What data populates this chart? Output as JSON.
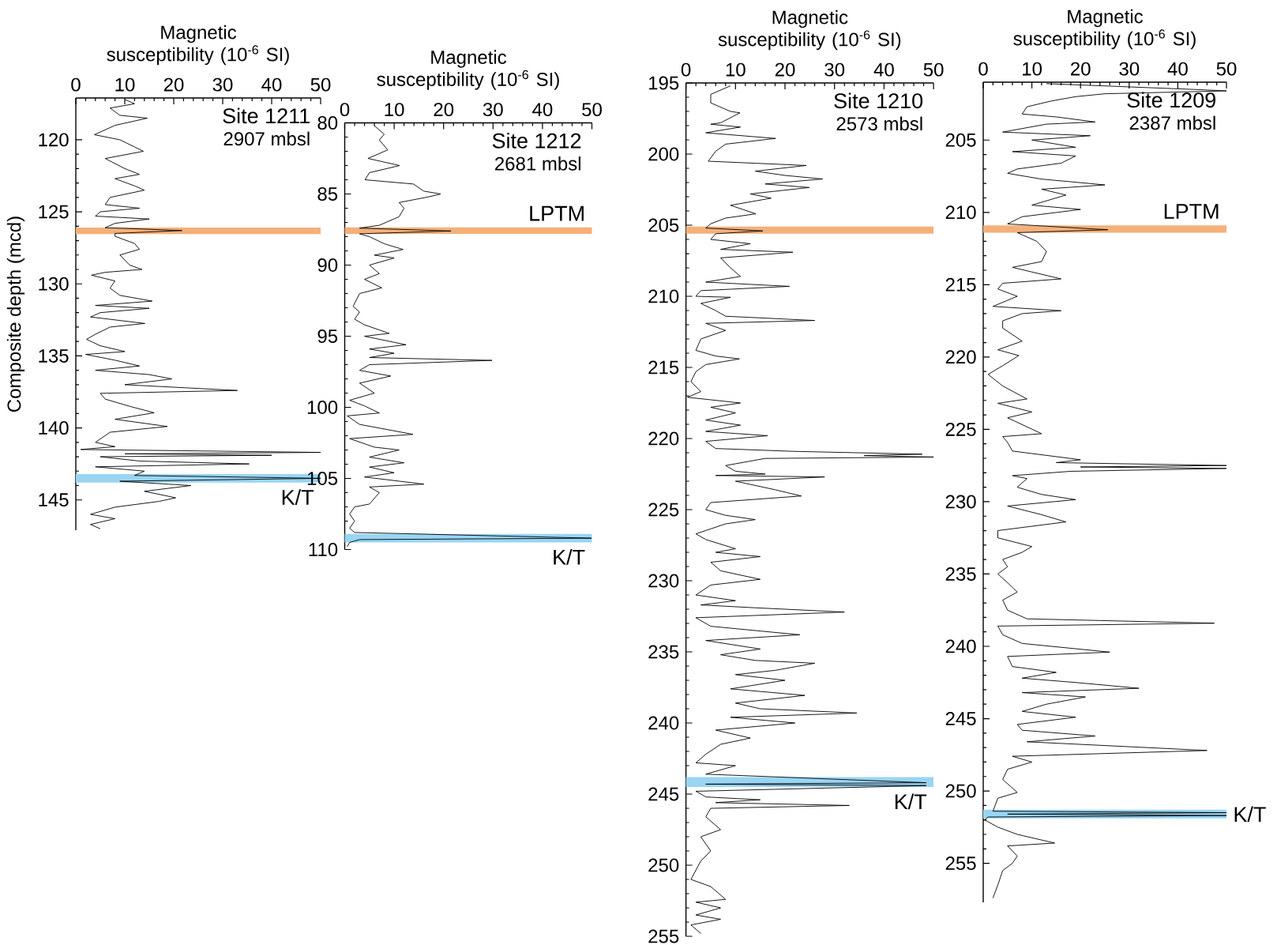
{
  "chart_data": [
    {
      "type": "line",
      "title": "Site 1211",
      "subtitle": "2907 mbsl",
      "xlabel": "Magnetic susceptibility (10$^{-6}$ SI)",
      "ylabel": "Composite depth (mcd)",
      "xlim": [
        0,
        50
      ],
      "xticks": [
        0,
        10,
        20,
        30,
        40,
        50
      ],
      "ylim": [
        147.1,
        117.1
      ],
      "yticks": [
        120,
        125,
        130,
        135,
        140,
        145
      ],
      "series": [
        {
          "color": "#000000",
          "x": [
            10,
            12,
            7,
            9,
            14.6,
            8,
            3.8,
            9,
            12,
            13.8,
            6,
            10,
            13,
            8,
            12,
            14,
            7,
            6,
            13,
            5,
            4,
            15,
            8,
            6,
            21.7,
            8,
            8,
            12,
            13,
            9,
            11,
            13.5,
            6,
            3.2,
            8,
            7,
            9,
            15.6,
            4,
            15,
            5,
            3,
            14.1,
            7,
            4,
            2.2,
            5,
            10,
            2,
            8,
            13,
            4,
            15,
            19.6,
            10,
            33,
            5,
            6,
            11,
            16,
            8,
            18.7,
            7,
            4,
            8,
            1,
            50,
            10,
            40,
            5,
            13,
            35.4,
            4,
            14,
            12,
            50,
            9,
            23.5,
            14,
            20.4,
            17,
            8,
            3,
            8,
            3,
            5
          ],
          "values": [
            117.2,
            117.5,
            117.8,
            118.3,
            118.5,
            119.0,
            119.65,
            120.0,
            120.5,
            120.8,
            121.3,
            122.0,
            122.4,
            122.7,
            123.2,
            123.5,
            124.0,
            124.5,
            124.75,
            125.0,
            125.3,
            125.5,
            125.8,
            126.1,
            126.3,
            126.5,
            126.7,
            127.2,
            127.6,
            128.0,
            128.7,
            129.0,
            129.2,
            129.4,
            129.8,
            130.3,
            130.8,
            131.2,
            131.5,
            131.7,
            132.0,
            132.3,
            132.75,
            133.0,
            133.5,
            133.85,
            134.3,
            134.7,
            134.9,
            135.3,
            135.7,
            136.0,
            136.3,
            136.6,
            137.0,
            137.4,
            137.6,
            138.0,
            138.5,
            138.95,
            139.4,
            139.9,
            140.3,
            141.0,
            141.3,
            141.5,
            141.7,
            141.8,
            141.9,
            142.0,
            142.3,
            142.5,
            142.7,
            143.0,
            143.3,
            143.5,
            143.7,
            144.0,
            144.4,
            144.85,
            145.1,
            145.5,
            146.0,
            146.3,
            146.7,
            147.0
          ]
        }
      ],
      "bands": [
        {
          "axis": "y",
          "from": 126.1,
          "to": 126.55,
          "color": "#f5b07a"
        },
        {
          "axis": "y",
          "from": 143.2,
          "to": 143.8,
          "label": "K/T",
          "color": "#99d5f3"
        }
      ]
    },
    {
      "type": "line",
      "title": "Site 1212",
      "subtitle": "2681 mbsl",
      "xlabel": "Magnetic susceptibility (10$^{-6}$ SI)",
      "xlim": [
        0,
        50
      ],
      "xticks": [
        0,
        10,
        20,
        30,
        40,
        50
      ],
      "ylim": [
        110,
        80
      ],
      "yticks": [
        80,
        85,
        90,
        95,
        100,
        105,
        110
      ],
      "series": [
        {
          "color": "#000000",
          "x": [
            6,
            8,
            7,
            8.7,
            4.7,
            11.1,
            5,
            4.1,
            13.9,
            16,
            19.4,
            17,
            11,
            12,
            11,
            7,
            3,
            21.5,
            3,
            5,
            8,
            11.8,
            6,
            10,
            5,
            7,
            4,
            7.5,
            3,
            1.7,
            3,
            2,
            4,
            9,
            4,
            12.4,
            5,
            10,
            5,
            29.8,
            5,
            3,
            9.3,
            3,
            6,
            1,
            4,
            7,
            0.5,
            3,
            13.8,
            1,
            6,
            11,
            5,
            12,
            5,
            10,
            4,
            16,
            5,
            7,
            5,
            2,
            1,
            2,
            1,
            2,
            49.9,
            3,
            1,
            0.5
          ],
          "values": [
            80.2,
            80.8,
            81.2,
            81.9,
            82.5,
            83.0,
            83.5,
            84.0,
            84.3,
            84.8,
            85.0,
            85.2,
            85.6,
            86.0,
            86.6,
            87.2,
            87.4,
            87.6,
            87.8,
            88.0,
            88.5,
            88.9,
            89.3,
            89.5,
            90.0,
            90.6,
            91.0,
            91.6,
            92.0,
            92.9,
            93.3,
            93.8,
            94.2,
            94.8,
            95.0,
            95.6,
            95.9,
            96.2,
            96.5,
            96.7,
            97.0,
            97.4,
            97.8,
            98.3,
            99.0,
            99.5,
            99.9,
            100.4,
            100.6,
            101.2,
            101.9,
            102.2,
            102.8,
            103.0,
            103.5,
            103.9,
            104.2,
            104.6,
            104.9,
            105.4,
            105.6,
            106.0,
            106.8,
            107.0,
            107.5,
            108.0,
            108.5,
            108.8,
            109.2,
            109.3,
            109.5,
            109.8
          ]
        }
      ],
      "bands": [
        {
          "axis": "y",
          "from": 87.35,
          "to": 87.8,
          "label": "LPTM",
          "color": "#f5b07a"
        },
        {
          "axis": "y",
          "from": 108.9,
          "to": 109.5,
          "label": "K/T",
          "color": "#99d5f3"
        }
      ]
    },
    {
      "type": "line",
      "title": "Site 1210",
      "subtitle": "2573 mbsl",
      "xlabel": "Magnetic susceptibility (10$^{-6}$ SI)",
      "xlim": [
        0,
        50
      ],
      "xticks": [
        0,
        10,
        20,
        30,
        40,
        50
      ],
      "ylim": [
        255,
        195
      ],
      "yticks": [
        195,
        200,
        205,
        210,
        215,
        220,
        225,
        230,
        235,
        240,
        245,
        250,
        255
      ],
      "series": [
        {
          "color": "#000000",
          "x": [
            9,
            5,
            5,
            9,
            10.9,
            7,
            5,
            11,
            4,
            18.1,
            8,
            6,
            4.5,
            24.3,
            14,
            20,
            27.6,
            16,
            24.9,
            13,
            17.2,
            9,
            14.1,
            8,
            5,
            4,
            15.5,
            6,
            5,
            13,
            7,
            21.6,
            7,
            9,
            11,
            4,
            20.9,
            3,
            2,
            9,
            3,
            6,
            8,
            26,
            4,
            8,
            3,
            2,
            6,
            10.8,
            4,
            2,
            1,
            3,
            0.3,
            11,
            5,
            10,
            4,
            11,
            4,
            16.5,
            4,
            6,
            21.7,
            47.7,
            36,
            50,
            16,
            8,
            10,
            16,
            6,
            28,
            10,
            18,
            23.3,
            5,
            4,
            8,
            14,
            8,
            2,
            4,
            10,
            6,
            15,
            5,
            7,
            15,
            5,
            2,
            10,
            3,
            14,
            32,
            2,
            5,
            23,
            4,
            15,
            7,
            14,
            26,
            18,
            10,
            20,
            9,
            24,
            10,
            15,
            34.5,
            9,
            22,
            6,
            13,
            7,
            4,
            2,
            10,
            4,
            48.5,
            4,
            48.5,
            2,
            4,
            15,
            6,
            33,
            5,
            4,
            7,
            3,
            5,
            3,
            1,
            5,
            8,
            2,
            7,
            2,
            7,
            1,
            3
          ],
          "values": [
            195.2,
            195.8,
            196.4,
            197.0,
            197.1,
            197.8,
            197.9,
            198.1,
            198.5,
            198.9,
            199.3,
            199.8,
            200.5,
            200.8,
            201.2,
            201.5,
            201.75,
            202.1,
            202.35,
            202.8,
            203.1,
            203.6,
            204.2,
            204.5,
            204.9,
            205.2,
            205.4,
            205.6,
            206.0,
            206.3,
            206.7,
            206.9,
            207.3,
            208.0,
            208.6,
            209.0,
            209.3,
            209.6,
            210.0,
            210.07,
            210.5,
            211.0,
            211.4,
            211.7,
            211.9,
            212.4,
            213.0,
            213.8,
            214.2,
            214.4,
            214.8,
            215.3,
            216.0,
            216.7,
            217.1,
            217.5,
            217.8,
            218.2,
            218.7,
            219.06,
            219.5,
            219.8,
            220.2,
            220.7,
            220.9,
            221.1,
            221.2,
            221.3,
            221.4,
            221.9,
            222.3,
            222.5,
            222.6,
            222.7,
            223.0,
            223.6,
            224.04,
            224.5,
            225.0,
            225.4,
            225.7,
            226.0,
            226.7,
            227.1,
            227.75,
            228.0,
            228.3,
            228.7,
            229.3,
            229.9,
            230.3,
            231.0,
            231.4,
            231.7,
            231.9,
            232.2,
            232.6,
            233.2,
            233.8,
            234.2,
            234.8,
            235.2,
            235.6,
            235.8,
            236.3,
            236.6,
            237.0,
            237.6,
            238.06,
            238.6,
            239.0,
            239.3,
            239.6,
            240.0,
            240.5,
            241.06,
            241.5,
            242.2,
            242.8,
            243.0,
            243.6,
            244.2,
            244.3,
            244.4,
            244.8,
            245.2,
            245.4,
            245.6,
            245.8,
            246.0,
            246.6,
            247.5,
            248.0,
            249.0,
            249.7,
            251.0,
            251.5,
            252.4,
            252.6,
            253.0,
            253.5,
            253.8,
            254.2,
            254.8
          ]
        }
      ],
      "bands": [
        {
          "axis": "y",
          "from": 205.1,
          "to": 205.6,
          "color": "#f5b07a"
        },
        {
          "axis": "y",
          "from": 243.8,
          "to": 244.5,
          "label": "K/T",
          "color": "#99d5f3"
        }
      ]
    },
    {
      "type": "line",
      "title": "Site 1209",
      "subtitle": "2387 mbsl",
      "xlabel": "Magnetic susceptibility (10$^{-6}$ SI)",
      "xlim": [
        0,
        50
      ],
      "xticks": [
        0,
        10,
        20,
        30,
        40,
        50
      ],
      "ylim": [
        257.7,
        201
      ],
      "yticks": [
        205,
        210,
        215,
        220,
        225,
        230,
        235,
        240,
        245,
        250,
        255
      ],
      "series": [
        {
          "color": "#000000",
          "x": [
            13,
            43.3,
            50,
            25,
            19,
            14,
            9,
            8,
            15,
            23,
            13,
            4,
            22,
            10,
            19,
            6,
            19,
            16,
            7,
            5,
            12,
            25,
            12,
            17,
            10,
            20,
            8,
            5,
            25.6,
            7,
            11,
            13,
            12,
            6,
            16,
            4,
            3,
            7,
            2,
            16,
            8,
            4,
            4,
            8,
            3,
            7.3,
            4,
            1,
            4,
            9,
            3,
            10,
            5,
            12,
            4,
            5,
            6,
            20,
            15,
            50,
            20,
            50,
            18,
            6,
            9,
            7,
            12,
            19,
            5,
            12,
            17,
            3,
            3,
            10,
            8,
            4,
            5,
            3,
            5,
            7,
            4,
            5,
            9,
            47.5,
            3,
            4,
            8,
            26,
            5,
            6,
            15,
            8,
            19,
            32,
            8,
            21,
            13,
            8,
            19,
            7,
            8,
            23,
            9,
            46,
            6,
            10,
            5,
            4,
            7,
            3,
            2,
            50,
            5,
            50,
            1,
            0.3,
            3,
            7,
            14.7,
            5,
            7,
            6,
            4,
            3,
            2
          ],
          "values": [
            201.1,
            201.5,
            201.6,
            201.8,
            202.0,
            202.3,
            202.7,
            203.2,
            203.4,
            203.75,
            203.9,
            204.45,
            204.7,
            205.0,
            205.5,
            205.8,
            206.1,
            206.6,
            207.0,
            207.3,
            207.7,
            208.1,
            208.4,
            208.8,
            209.5,
            209.8,
            210.3,
            210.8,
            211.2,
            211.4,
            212.0,
            212.7,
            213.4,
            213.8,
            214.6,
            214.9,
            215.3,
            215.8,
            216.5,
            216.8,
            217.0,
            217.5,
            218.0,
            218.9,
            219.5,
            219.9,
            220.6,
            221.2,
            222.0,
            222.9,
            223.2,
            223.8,
            224.2,
            225.3,
            225.5,
            225.9,
            226.5,
            227.1,
            227.3,
            227.5,
            227.6,
            227.7,
            227.9,
            228.2,
            228.4,
            229.0,
            229.5,
            229.86,
            230.3,
            230.9,
            231.4,
            232.0,
            232.5,
            233.1,
            233.5,
            234.0,
            234.5,
            235.0,
            235.6,
            236.25,
            236.8,
            237.5,
            238.1,
            238.4,
            238.6,
            239.2,
            239.8,
            240.4,
            240.7,
            241.4,
            241.8,
            242.2,
            242.5,
            242.9,
            243.2,
            243.5,
            244.0,
            244.5,
            244.9,
            245.4,
            245.8,
            246.2,
            246.6,
            247.2,
            247.6,
            248.0,
            248.5,
            249.2,
            250.1,
            250.5,
            251.4,
            251.5,
            251.6,
            251.7,
            251.8,
            252.0,
            252.5,
            253.0,
            253.6,
            253.8,
            254.5,
            255.0,
            255.5,
            256.5,
            257.4
          ]
        }
      ],
      "bands": [
        {
          "axis": "y",
          "from": 210.9,
          "to": 211.4,
          "label": "LPTM",
          "color": "#f5b07a"
        },
        {
          "axis": "y",
          "from": 251.3,
          "to": 251.9,
          "label": "K/T",
          "color": "#99d5f3"
        }
      ]
    }
  ]
}
